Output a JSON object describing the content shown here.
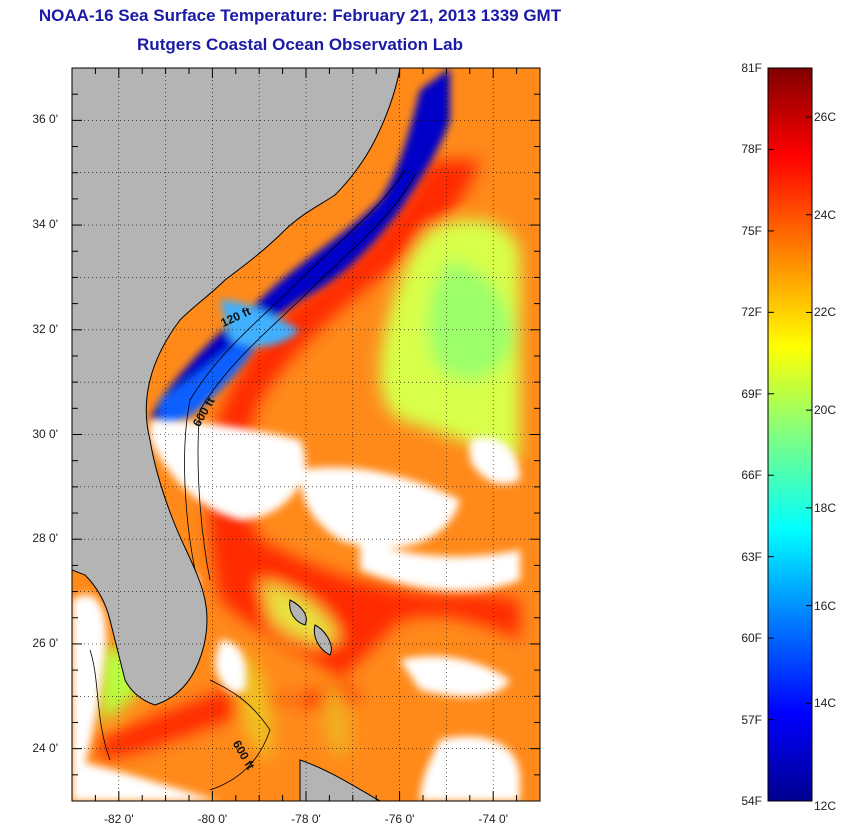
{
  "title": "NOAA-16 Sea Surface Temperature:  February 21, 2013 1339 GMT",
  "subtitle": "Rutgers Coastal Ocean Observation Lab",
  "map": {
    "lat_ticks": [
      {
        "label": "36 0'",
        "value": 36
      },
      {
        "label": "34 0'",
        "value": 34
      },
      {
        "label": "32 0'",
        "value": 32
      },
      {
        "label": "30 0'",
        "value": 30
      },
      {
        "label": "28 0'",
        "value": 28
      },
      {
        "label": "26 0'",
        "value": 26
      },
      {
        "label": "24 0'",
        "value": 24
      }
    ],
    "lon_ticks": [
      {
        "label": "-82 0'",
        "value": -82
      },
      {
        "label": "-80 0'",
        "value": -80
      },
      {
        "label": "-78 0'",
        "value": -78
      },
      {
        "label": "-76 0'",
        "value": -76
      },
      {
        "label": "-74 0'",
        "value": -74
      }
    ],
    "lat_range": [
      23,
      37
    ],
    "lon_range": [
      -83,
      -73
    ],
    "contour_labels": [
      "120 ft",
      "600 ft",
      "600 ft"
    ],
    "colors": {
      "land": "#b4b4b4",
      "cloud": "#ffffff",
      "coast": "#000000"
    }
  },
  "colorbar": {
    "fahrenheit_labels": [
      "81F",
      "78F",
      "75F",
      "72F",
      "69F",
      "66F",
      "63F",
      "60F",
      "57F",
      "54F"
    ],
    "celsius_labels": [
      "26C",
      "24C",
      "22C",
      "20C",
      "18C",
      "16C",
      "14C",
      "12C"
    ],
    "colors": [
      "#00008f",
      "#0000ff",
      "#0080ff",
      "#00ffff",
      "#80ff80",
      "#ffff00",
      "#ff8000",
      "#ff0000",
      "#800000"
    ]
  }
}
